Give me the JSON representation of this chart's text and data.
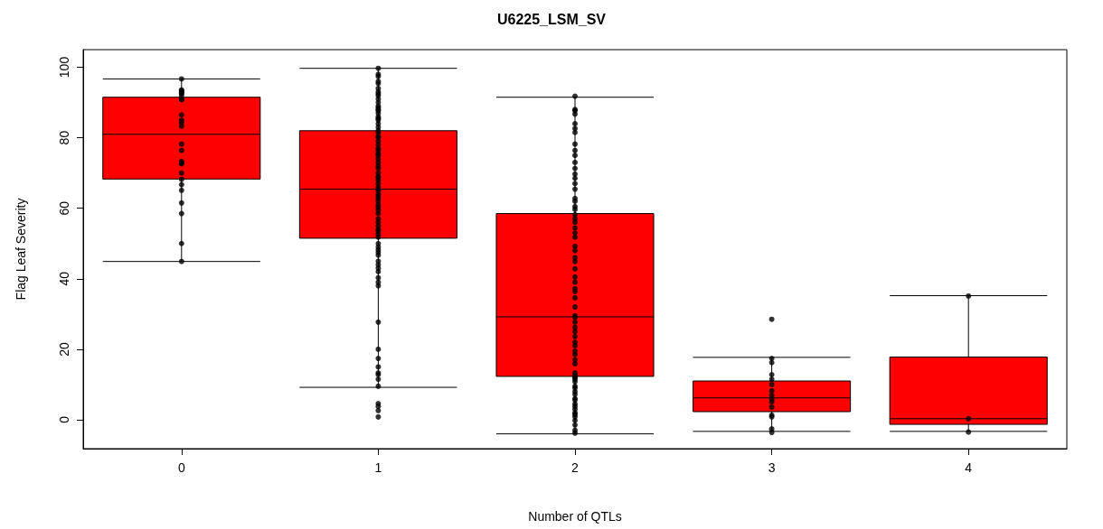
{
  "chart_data": {
    "type": "box",
    "title": "U6225_LSM_SV",
    "xlabel": "Number of QTLs",
    "ylabel": "Flag Leaf Severity",
    "categories": [
      "0",
      "1",
      "2",
      "3",
      "4"
    ],
    "ylim": [
      -8.2,
      105
    ],
    "yticks": [
      0,
      20,
      40,
      60,
      80,
      100
    ],
    "grid": false,
    "series": [
      {
        "type": "box",
        "color": "#ff0000",
        "boxes": [
          {
            "low": 44.9,
            "q1": 68.3,
            "median": 81,
            "q3": 91.5,
            "high": 96.7
          },
          {
            "low": 9.2,
            "q1": 51.5,
            "median": 65.4,
            "q3": 82,
            "high": 99.7
          },
          {
            "low": -4,
            "q1": 12.3,
            "median": 29.2,
            "q3": 58.5,
            "high": 91.5
          },
          {
            "low": -3.3,
            "q1": 2.3,
            "median": 6.2,
            "q3": 11,
            "high": 17.7
          },
          {
            "low": -3.3,
            "q1": -1.3,
            "median": 0.3,
            "q3": 17.8,
            "high": 35.2
          }
        ]
      },
      {
        "type": "scatter",
        "color": "#000000",
        "marker": "circle",
        "x": [
          "0",
          "0",
          "0",
          "0",
          "0",
          "0",
          "0",
          "0",
          "0",
          "0",
          "0",
          "0",
          "0",
          "0",
          "0",
          "0",
          "0",
          "0",
          "0",
          "0",
          "0",
          "0",
          "0",
          "0",
          "0",
          "0",
          "1",
          "1",
          "1",
          "1",
          "1",
          "1",
          "1",
          "1",
          "1",
          "1",
          "1",
          "1",
          "1",
          "1",
          "1",
          "1",
          "1",
          "1",
          "1",
          "1",
          "1",
          "1",
          "1",
          "1",
          "1",
          "1",
          "1",
          "1",
          "1",
          "1",
          "1",
          "1",
          "1",
          "1",
          "1",
          "1",
          "1",
          "1",
          "1",
          "1",
          "1",
          "1",
          "1",
          "1",
          "1",
          "1",
          "1",
          "1",
          "1",
          "1",
          "1",
          "1",
          "1",
          "1",
          "1",
          "1",
          "1",
          "1",
          "1",
          "1",
          "1",
          "1",
          "1",
          "1",
          "1",
          "1",
          "1",
          "1",
          "1",
          "1",
          "1",
          "1",
          "1",
          "1",
          "1",
          "1",
          "1",
          "1",
          "1",
          "1",
          "1",
          "1",
          "2",
          "2",
          "2",
          "2",
          "2",
          "2",
          "2",
          "2",
          "2",
          "2",
          "2",
          "2",
          "2",
          "2",
          "2",
          "2",
          "2",
          "2",
          "2",
          "2",
          "2",
          "2",
          "2",
          "2",
          "2",
          "2",
          "2",
          "2",
          "2",
          "2",
          "2",
          "2",
          "2",
          "2",
          "2",
          "2",
          "2",
          "2",
          "2",
          "2",
          "2",
          "2",
          "2",
          "2",
          "2",
          "2",
          "2",
          "2",
          "2",
          "2",
          "2",
          "2",
          "2",
          "2",
          "2",
          "2",
          "2",
          "2",
          "2",
          "2",
          "2",
          "2",
          "2",
          "2",
          "2",
          "2",
          "2",
          "2",
          "2",
          "2",
          "3",
          "3",
          "3",
          "3",
          "3",
          "3",
          "3",
          "3",
          "3",
          "3",
          "3",
          "3",
          "3",
          "3",
          "3",
          "4",
          "4",
          "4"
        ],
        "values": [
          96.7,
          93.6,
          93.3,
          93,
          92.8,
          92.5,
          92,
          91,
          90.8,
          86.5,
          85,
          84.3,
          83.3,
          78.2,
          76.4,
          73.3,
          72.6,
          72.8,
          70,
          68.2,
          66.7,
          65.1,
          61.5,
          58.5,
          50,
          44.9,
          99.7,
          98,
          97.4,
          95.4,
          92.5,
          92,
          91,
          88.5,
          88,
          87.7,
          86,
          85.5,
          85,
          83,
          82,
          81.5,
          80,
          79,
          78,
          76.4,
          75.5,
          75,
          73,
          72,
          71.3,
          68.7,
          68,
          67,
          65.4,
          65,
          64,
          62.8,
          62,
          61,
          60.3,
          59.5,
          58.5,
          55,
          54,
          52.6,
          51.8,
          48.2,
          47.5,
          46.7,
          45,
          44,
          43,
          40.3,
          39,
          38,
          27.7,
          20,
          17.4,
          15,
          13.3,
          12.8,
          11.5,
          9.5,
          4.6,
          3.8,
          2.6,
          0.8,
          96,
          94,
          93,
          90,
          89,
          87,
          84,
          80.5,
          77,
          74,
          70,
          69,
          66,
          63.5,
          57,
          56,
          53.5,
          50,
          49,
          42,
          91.8,
          87.7,
          86.7,
          82.6,
          81.5,
          78.2,
          76.4,
          73,
          71.3,
          69.7,
          68.5,
          65.4,
          62.8,
          62,
          59.7,
          58.2,
          57,
          56,
          54.4,
          51.8,
          49.2,
          48,
          44.9,
          42.8,
          40.5,
          39,
          37.2,
          36.4,
          34.6,
          29.5,
          29,
          27.7,
          26.2,
          23.6,
          22,
          21,
          18.5,
          17,
          15.9,
          13.3,
          12.5,
          11.5,
          10.8,
          9,
          8,
          7.2,
          5.6,
          4.5,
          3.8,
          2,
          0.8,
          -1.5,
          -0.2,
          1.5,
          3,
          6,
          9.5,
          12,
          -3,
          -3.8,
          88,
          84,
          75,
          67,
          60.5,
          53,
          46,
          32,
          25,
          19.5,
          28.5,
          17.4,
          16.2,
          12.8,
          11.5,
          10,
          8.2,
          6.9,
          5.9,
          5.1,
          3.6,
          1.3,
          0.8,
          -2.6,
          -3.6,
          35.1,
          0.3,
          -3.5
        ]
      }
    ]
  }
}
